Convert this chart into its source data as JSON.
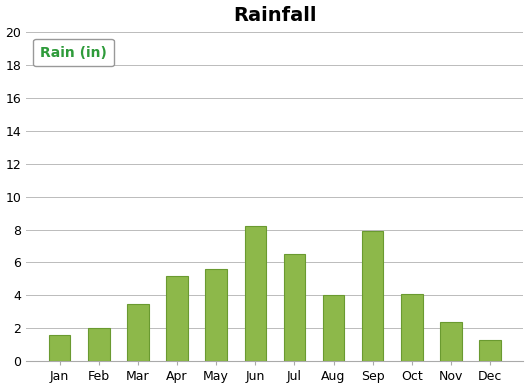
{
  "title": "Rainfall",
  "title_fontsize": 14,
  "title_fontweight": "bold",
  "categories": [
    "Jan",
    "Feb",
    "Mar",
    "Apr",
    "May",
    "Jun",
    "Jul",
    "Aug",
    "Sep",
    "Oct",
    "Nov",
    "Dec"
  ],
  "values": [
    1.6,
    2.0,
    3.5,
    5.2,
    5.6,
    8.2,
    6.5,
    4.0,
    7.9,
    4.1,
    2.4,
    1.3
  ],
  "bar_color_face": "#8DB84A",
  "bar_color_edge": "#6A9A30",
  "bar_width": 0.55,
  "ylim": [
    0,
    20
  ],
  "yticks": [
    0,
    2,
    4,
    6,
    8,
    10,
    12,
    14,
    16,
    18,
    20
  ],
  "legend_label": "Rain (in)",
  "legend_text_color": "#2E9B3A",
  "legend_fontsize": 10,
  "grid_color": "#BBBBBB",
  "background_color": "#FFFFFF",
  "tick_fontsize": 9,
  "spine_color": "#AAAAAA"
}
